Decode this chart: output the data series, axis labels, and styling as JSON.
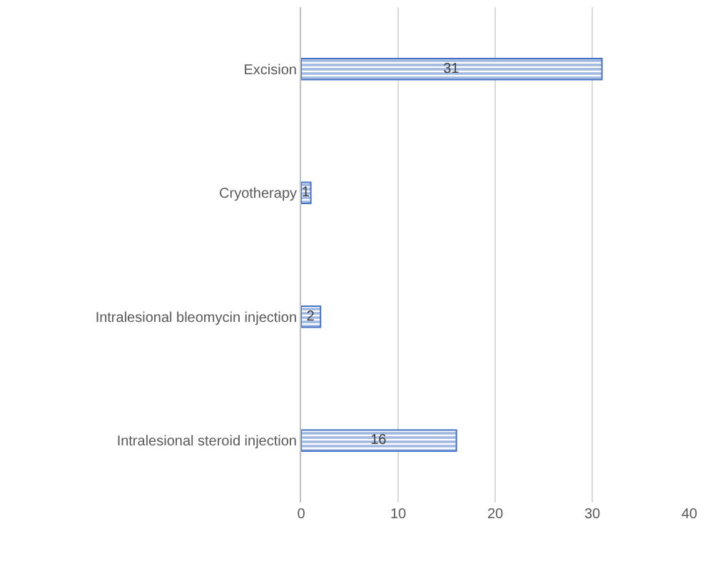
{
  "chart_data": {
    "type": "bar",
    "orientation": "horizontal",
    "categories": [
      "Excision",
      "Cryotherapy",
      "Intralesional bleomycin injection",
      "Intralesional steroid injection"
    ],
    "values": [
      31,
      1,
      2,
      16
    ],
    "color": "#4472c4",
    "xlim": [
      0,
      40
    ],
    "xticks": [
      0,
      10,
      20,
      30,
      40
    ],
    "grid": "x",
    "data_labels": true,
    "legend": false
  }
}
